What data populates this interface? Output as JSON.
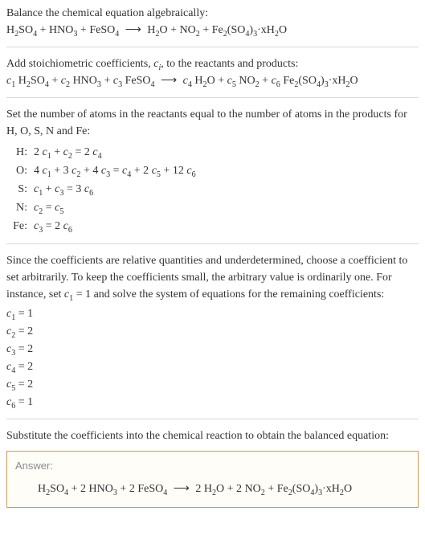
{
  "colors": {
    "text": "#333333",
    "separator": "#d9d9d9",
    "answer_border": "#e29a20",
    "answer_bg": "#fffdf8",
    "answer_title": "#8a8a8a",
    "background": "#ffffff"
  },
  "typography": {
    "body_family": "Georgia, 'Times New Roman', serif",
    "body_size_pt": 11,
    "sans_family": "Arial, Helvetica, sans-serif"
  },
  "intro": {
    "line1": "Balance the chemical equation algebraically:"
  },
  "step2": {
    "text": "Add stoichiometric coefficients, ",
    "var": "c",
    "sub": "i",
    "text2": ", to the reactants and products:"
  },
  "step3": {
    "text": "Set the number of atoms in the reactants equal to the number of atoms in the products for H, O, S, N and Fe:"
  },
  "atom_rows": [
    {
      "label": "H:",
      "eq_parts": [
        "2 ",
        "c",
        "1",
        " + ",
        "c",
        "2",
        " = 2 ",
        "c",
        "4"
      ]
    },
    {
      "label": "O:",
      "eq_parts": [
        "4 ",
        "c",
        "1",
        " + 3 ",
        "c",
        "2",
        " + 4 ",
        "c",
        "3",
        " = ",
        "c",
        "4",
        " + 2 ",
        "c",
        "5",
        " + 12 ",
        "c",
        "6"
      ]
    },
    {
      "label": "S:",
      "eq_parts": [
        "",
        "c",
        "1",
        " + ",
        "c",
        "3",
        " = 3 ",
        "c",
        "6"
      ]
    },
    {
      "label": "N:",
      "eq_parts": [
        "",
        "c",
        "2",
        " = ",
        "c",
        "5"
      ]
    },
    {
      "label": "Fe:",
      "eq_parts": [
        "",
        "c",
        "3",
        " = 2 ",
        "c",
        "6"
      ]
    }
  ],
  "step4": {
    "text_a": "Since the coefficients are relative quantities and underdetermined, choose a coefficient to set arbitrarily. To keep the coefficients small, the arbitrary value is ordinarily one. For instance, set ",
    "var": "c",
    "sub": "1",
    "text_b": " = 1 and solve the system of equations for the remaining coefficients:"
  },
  "coeff_rows": [
    {
      "var": "c",
      "sub": "1",
      "val": " = 1"
    },
    {
      "var": "c",
      "sub": "2",
      "val": " = 2"
    },
    {
      "var": "c",
      "sub": "3",
      "val": " = 2"
    },
    {
      "var": "c",
      "sub": "4",
      "val": " = 2"
    },
    {
      "var": "c",
      "sub": "5",
      "val": " = 2"
    },
    {
      "var": "c",
      "sub": "6",
      "val": " = 1"
    }
  ],
  "step5": {
    "text": "Substitute the coefficients into the chemical reaction to obtain the balanced equation:"
  },
  "answer": {
    "title": "Answer:"
  },
  "eq1": {
    "r1a": "H",
    "r1b": "2",
    "r1c": "SO",
    "r1d": "4",
    "plus1": " + ",
    "r2a": "HNO",
    "r2b": "3",
    "plus2": " + ",
    "r3a": "FeSO",
    "r3b": "4",
    "arrow": " ⟶ ",
    "p1a": "H",
    "p1b": "2",
    "p1c": "O",
    "plus3": " + ",
    "p2a": "NO",
    "p2b": "2",
    "plus4": " + ",
    "p3a": "Fe",
    "p3b": "2",
    "p3c": "(SO",
    "p3d": "4",
    "p3e": ")",
    "p3f": "3",
    "p3g": "·xH",
    "p3h": "2",
    "p3i": "O"
  },
  "eq2": {
    "c1a": "c",
    "c1b": "1",
    "sp1": " ",
    "c2a": "c",
    "c2b": "2",
    "sp2": " ",
    "c3a": "c",
    "c3b": "3",
    "sp3": " ",
    "c4a": "c",
    "c4b": "4",
    "sp4": " ",
    "c5a": "c",
    "c5b": "5",
    "sp5": " ",
    "c6a": "c",
    "c6b": "6",
    "sp6": " "
  },
  "eq3": {
    "r1a": "H",
    "r1b": "2",
    "r1c": "SO",
    "r1d": "4",
    "plus1": " + 2 ",
    "r2a": "HNO",
    "r2b": "3",
    "plus2": " + 2 ",
    "r3a": "FeSO",
    "r3b": "4",
    "arrow": " ⟶ ",
    "p0": "2 ",
    "p1a": "H",
    "p1b": "2",
    "p1c": "O",
    "plus3": " + 2 ",
    "p2a": "NO",
    "p2b": "2",
    "plus4": " + ",
    "p3a": "Fe",
    "p3b": "2",
    "p3c": "(SO",
    "p3d": "4",
    "p3e": ")",
    "p3f": "3",
    "p3g": "·xH",
    "p3h": "2",
    "p3i": "O"
  }
}
